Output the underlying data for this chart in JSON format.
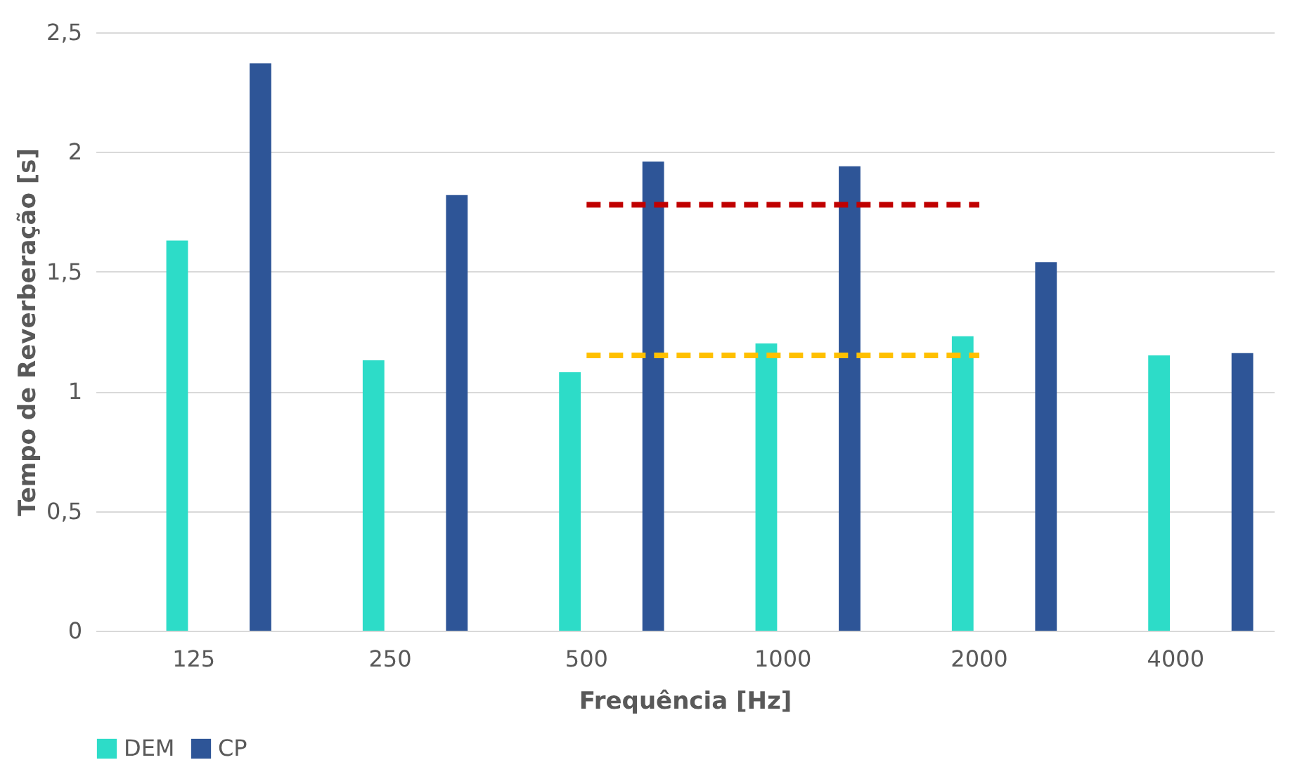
{
  "chart_data": {
    "type": "bar",
    "xlabel": "Frequência [Hz]",
    "ylabel": "Tempo de Reverberação [s]",
    "categories": [
      "125",
      "250",
      "500",
      "1000",
      "2000",
      "4000"
    ],
    "series": [
      {
        "name": "DEM",
        "color": "#2ddcc8",
        "values": [
          1.63,
          1.13,
          1.08,
          1.2,
          1.23,
          1.15
        ]
      },
      {
        "name": "CP",
        "color": "#2e5597",
        "values": [
          2.37,
          1.82,
          1.96,
          1.94,
          1.54,
          1.16
        ]
      },
      {
        "type": "line",
        "color": "#c00000",
        "line_style": "dashed",
        "values": [
          null,
          null,
          1.78,
          1.78,
          1.78,
          null
        ]
      },
      {
        "type": "line",
        "color": "#ffc000",
        "line_style": "dashed",
        "values": [
          null,
          null,
          1.15,
          1.15,
          1.15,
          null
        ]
      }
    ],
    "ylim": [
      0,
      2.5
    ],
    "yticks": [
      0,
      {
        "value": 0.5,
        "label": "0,5"
      },
      1,
      {
        "value": 1.5,
        "label": "1,5"
      },
      2,
      {
        "value": 2.5,
        "label": "2,5"
      }
    ],
    "grid": "y",
    "legend": "bottom"
  }
}
